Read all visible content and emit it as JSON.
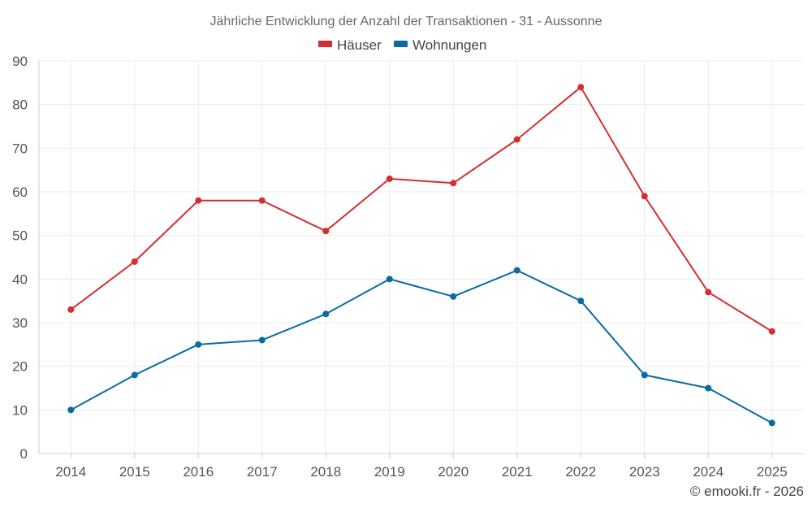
{
  "chart_data": {
    "type": "line",
    "title": "Jährliche Entwicklung der Anzahl der Transaktionen - 31 - Aussonne",
    "categories": [
      "2014",
      "2015",
      "2016",
      "2017",
      "2018",
      "2019",
      "2020",
      "2021",
      "2022",
      "2023",
      "2024",
      "2025"
    ],
    "series": [
      {
        "name": "Häuser",
        "color": "#d32f2f",
        "values": [
          33,
          44,
          58,
          58,
          51,
          63,
          62,
          72,
          84,
          59,
          37,
          28
        ]
      },
      {
        "name": "Wohnungen",
        "color": "#0a6aa1",
        "values": [
          10,
          18,
          25,
          26,
          32,
          40,
          36,
          42,
          35,
          18,
          15,
          7
        ]
      }
    ],
    "ylim": [
      0,
      90
    ],
    "yticks": [
      0,
      10,
      20,
      30,
      40,
      50,
      60,
      70,
      80,
      90
    ],
    "xlabel": "",
    "ylabel": "",
    "grid": true,
    "legend": "top-center"
  },
  "credit": "© emooki.fr - 2026"
}
